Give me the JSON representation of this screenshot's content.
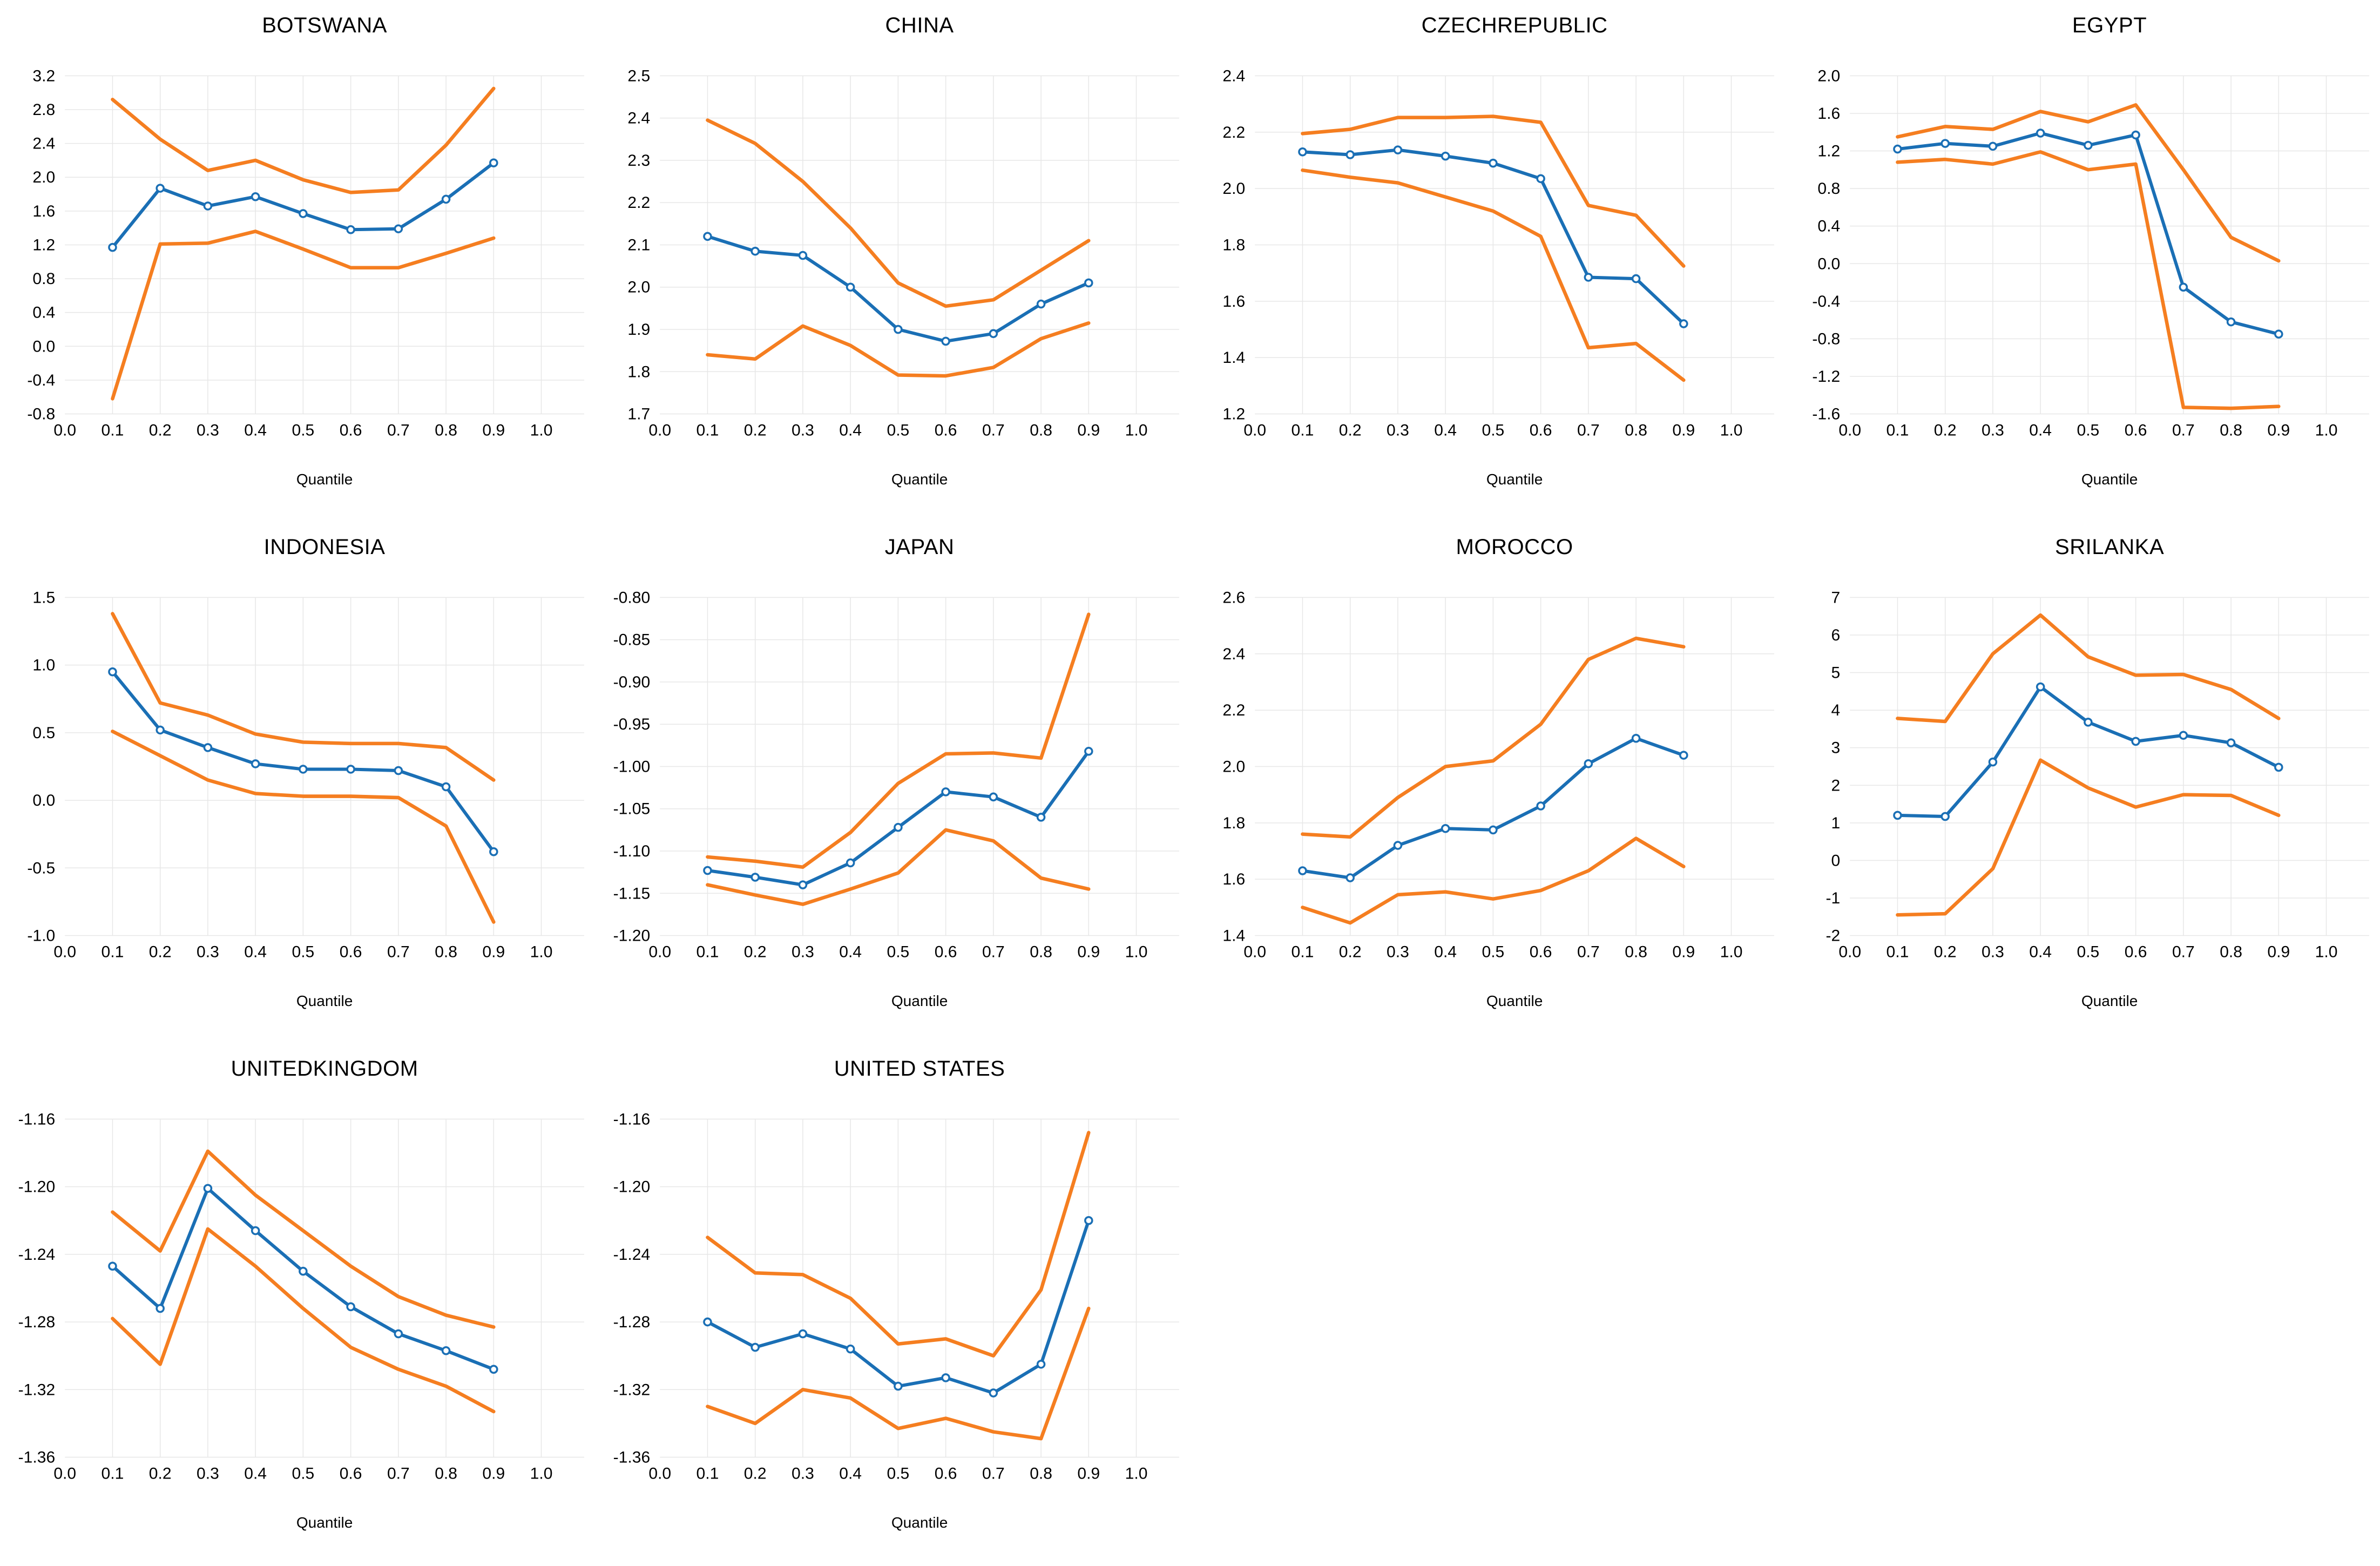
{
  "page": {
    "background": "#ffffff",
    "x_axis_label": "Quantile",
    "x_tick_labels": [
      "0.0",
      "0.1",
      "0.2",
      "0.3",
      "0.4",
      "0.5",
      "0.6",
      "0.7",
      "0.8",
      "0.9",
      "1.0"
    ]
  },
  "colors": {
    "estimate_line": "#1A6FB5",
    "ci_line": "#F57E20",
    "marker_fill": "#FFFFFF",
    "gridline": "#E7E7E7",
    "text": "#000000"
  },
  "chart_data": [
    {
      "type": "line",
      "title": "BOTSWANA",
      "xlabel": "Quantile",
      "x": [
        0.1,
        0.2,
        0.3,
        0.4,
        0.5,
        0.6,
        0.7,
        0.8,
        0.9
      ],
      "xticks": [
        "0.0",
        "0.1",
        "0.2",
        "0.3",
        "0.4",
        "0.5",
        "0.6",
        "0.7",
        "0.8",
        "0.9",
        "1.0"
      ],
      "xlim": [
        0,
        1.09
      ],
      "ylim": [
        -0.8,
        3.2
      ],
      "yticks": [
        "3.2",
        "2.8",
        "2.4",
        "2.0",
        "1.6",
        "1.2",
        "0.8",
        "0.4",
        "0.0",
        "-0.4",
        "-0.8"
      ],
      "grid": true,
      "legend_position": "none",
      "series": [
        {
          "name": "upper-ci",
          "role": "ci",
          "values": [
            2.92,
            2.45,
            2.08,
            2.2,
            1.97,
            1.82,
            1.85,
            2.38,
            3.05
          ]
        },
        {
          "name": "lower-ci",
          "role": "ci",
          "values": [
            -0.62,
            1.21,
            1.22,
            1.36,
            1.15,
            0.93,
            0.93,
            1.1,
            1.28
          ]
        },
        {
          "name": "estimate",
          "role": "estimate",
          "values": [
            1.17,
            1.87,
            1.66,
            1.77,
            1.57,
            1.38,
            1.39,
            1.74,
            2.17
          ]
        }
      ]
    },
    {
      "type": "line",
      "title": "CHINA",
      "xlabel": "Quantile",
      "x": [
        0.1,
        0.2,
        0.3,
        0.4,
        0.5,
        0.6,
        0.7,
        0.8,
        0.9
      ],
      "xticks": [
        "0.0",
        "0.1",
        "0.2",
        "0.3",
        "0.4",
        "0.5",
        "0.6",
        "0.7",
        "0.8",
        "0.9",
        "1.0"
      ],
      "xlim": [
        0,
        1.09
      ],
      "ylim": [
        1.7,
        2.5
      ],
      "yticks": [
        "2.5",
        "2.4",
        "2.3",
        "2.2",
        "2.1",
        "2.0",
        "1.9",
        "1.8",
        "1.7"
      ],
      "grid": true,
      "legend_position": "none",
      "series": [
        {
          "name": "upper-ci",
          "role": "ci",
          "values": [
            2.395,
            2.34,
            2.25,
            2.14,
            2.01,
            1.955,
            1.97,
            2.04,
            2.11
          ]
        },
        {
          "name": "lower-ci",
          "role": "ci",
          "values": [
            1.84,
            1.83,
            1.908,
            1.862,
            1.792,
            1.79,
            1.81,
            1.878,
            1.915
          ]
        },
        {
          "name": "estimate",
          "role": "estimate",
          "values": [
            2.12,
            2.085,
            2.075,
            2.0,
            1.9,
            1.872,
            1.89,
            1.96,
            2.01
          ]
        }
      ]
    },
    {
      "type": "line",
      "title": "CZECHREPUBLIC",
      "xlabel": "Quantile",
      "x": [
        0.1,
        0.2,
        0.3,
        0.4,
        0.5,
        0.6,
        0.7,
        0.8,
        0.9
      ],
      "xticks": [
        "0.0",
        "0.1",
        "0.2",
        "0.3",
        "0.4",
        "0.5",
        "0.6",
        "0.7",
        "0.8",
        "0.9",
        "1.0"
      ],
      "xlim": [
        0,
        1.09
      ],
      "ylim": [
        1.2,
        2.4
      ],
      "yticks": [
        "2.4",
        "2.2",
        "2.0",
        "1.8",
        "1.6",
        "1.4",
        "1.2"
      ],
      "grid": true,
      "legend_position": "none",
      "series": [
        {
          "name": "upper-ci",
          "role": "ci",
          "values": [
            2.195,
            2.21,
            2.252,
            2.252,
            2.256,
            2.235,
            1.94,
            1.905,
            1.725
          ]
        },
        {
          "name": "lower-ci",
          "role": "ci",
          "values": [
            2.065,
            2.04,
            2.02,
            1.97,
            1.92,
            1.83,
            1.435,
            1.45,
            1.32
          ]
        },
        {
          "name": "estimate",
          "role": "estimate",
          "values": [
            2.13,
            2.12,
            2.137,
            2.115,
            2.09,
            2.035,
            1.685,
            1.68,
            1.52
          ]
        }
      ]
    },
    {
      "type": "line",
      "title": "EGYPT",
      "xlabel": "Quantile",
      "x": [
        0.1,
        0.2,
        0.3,
        0.4,
        0.5,
        0.6,
        0.7,
        0.8,
        0.9
      ],
      "xticks": [
        "0.0",
        "0.1",
        "0.2",
        "0.3",
        "0.4",
        "0.5",
        "0.6",
        "0.7",
        "0.8",
        "0.9",
        "1.0"
      ],
      "xlim": [
        0,
        1.09
      ],
      "ylim": [
        -1.6,
        2.0
      ],
      "yticks": [
        "2.0",
        "1.6",
        "1.2",
        "0.8",
        "0.4",
        "0.0",
        "-0.4",
        "-0.8",
        "-1.2",
        "-1.6"
      ],
      "grid": true,
      "legend_position": "none",
      "series": [
        {
          "name": "upper-ci",
          "role": "ci",
          "values": [
            1.35,
            1.46,
            1.43,
            1.62,
            1.51,
            1.69,
            1.0,
            0.28,
            0.03
          ]
        },
        {
          "name": "lower-ci",
          "role": "ci",
          "values": [
            1.08,
            1.11,
            1.06,
            1.19,
            1.0,
            1.06,
            -1.53,
            -1.54,
            -1.52
          ]
        },
        {
          "name": "estimate",
          "role": "estimate",
          "values": [
            1.22,
            1.28,
            1.25,
            1.39,
            1.26,
            1.37,
            -0.25,
            -0.62,
            -0.75
          ]
        }
      ]
    },
    {
      "type": "line",
      "title": "INDONESIA",
      "xlabel": "Quantile",
      "x": [
        0.1,
        0.2,
        0.3,
        0.4,
        0.5,
        0.6,
        0.7,
        0.8,
        0.9
      ],
      "xticks": [
        "0.0",
        "0.1",
        "0.2",
        "0.3",
        "0.4",
        "0.5",
        "0.6",
        "0.7",
        "0.8",
        "0.9",
        "1.0"
      ],
      "xlim": [
        0,
        1.09
      ],
      "ylim": [
        -1.0,
        1.5
      ],
      "yticks": [
        "1.5",
        "1.0",
        "0.5",
        "0.0",
        "-0.5",
        "-1.0"
      ],
      "grid": true,
      "legend_position": "none",
      "series": [
        {
          "name": "upper-ci",
          "role": "ci",
          "values": [
            1.38,
            0.72,
            0.63,
            0.49,
            0.43,
            0.42,
            0.42,
            0.39,
            0.15
          ]
        },
        {
          "name": "lower-ci",
          "role": "ci",
          "values": [
            0.51,
            0.33,
            0.15,
            0.05,
            0.03,
            0.03,
            0.02,
            -0.19,
            -0.9
          ]
        },
        {
          "name": "estimate",
          "role": "estimate",
          "values": [
            0.95,
            0.52,
            0.39,
            0.27,
            0.23,
            0.23,
            0.22,
            0.1,
            -0.38
          ]
        }
      ]
    },
    {
      "type": "line",
      "title": "JAPAN",
      "xlabel": "Quantile",
      "x": [
        0.1,
        0.2,
        0.3,
        0.4,
        0.5,
        0.6,
        0.7,
        0.8,
        0.9
      ],
      "xticks": [
        "0.0",
        "0.1",
        "0.2",
        "0.3",
        "0.4",
        "0.5",
        "0.6",
        "0.7",
        "0.8",
        "0.9",
        "1.0"
      ],
      "xlim": [
        0,
        1.09
      ],
      "ylim": [
        -1.2,
        -0.8
      ],
      "yticks": [
        "-0.80",
        "-0.85",
        "-0.90",
        "-0.95",
        "-1.00",
        "-1.05",
        "-1.10",
        "-1.15",
        "-1.20"
      ],
      "grid": true,
      "legend_position": "none",
      "series": [
        {
          "name": "upper-ci",
          "role": "ci",
          "values": [
            -1.107,
            -1.112,
            -1.119,
            -1.078,
            -1.02,
            -0.985,
            -0.984,
            -0.99,
            -0.82
          ]
        },
        {
          "name": "lower-ci",
          "role": "ci",
          "values": [
            -1.14,
            -1.152,
            -1.163,
            -1.145,
            -1.126,
            -1.075,
            -1.088,
            -1.132,
            -1.145
          ]
        },
        {
          "name": "estimate",
          "role": "estimate",
          "values": [
            -1.123,
            -1.131,
            -1.14,
            -1.114,
            -1.072,
            -1.03,
            -1.036,
            -1.06,
            -0.982
          ]
        }
      ]
    },
    {
      "type": "line",
      "title": "MOROCCO",
      "xlabel": "Quantile",
      "x": [
        0.1,
        0.2,
        0.3,
        0.4,
        0.5,
        0.6,
        0.7,
        0.8,
        0.9
      ],
      "xticks": [
        "0.0",
        "0.1",
        "0.2",
        "0.3",
        "0.4",
        "0.5",
        "0.6",
        "0.7",
        "0.8",
        "0.9",
        "1.0"
      ],
      "xlim": [
        0,
        1.09
      ],
      "ylim": [
        1.4,
        2.6
      ],
      "yticks": [
        "2.6",
        "2.4",
        "2.2",
        "2.0",
        "1.8",
        "1.6",
        "1.4"
      ],
      "grid": true,
      "legend_position": "none",
      "series": [
        {
          "name": "upper-ci",
          "role": "ci",
          "values": [
            1.76,
            1.75,
            1.89,
            2.0,
            2.02,
            2.15,
            2.38,
            2.455,
            2.425
          ]
        },
        {
          "name": "lower-ci",
          "role": "ci",
          "values": [
            1.5,
            1.445,
            1.545,
            1.555,
            1.53,
            1.56,
            1.63,
            1.745,
            1.645
          ]
        },
        {
          "name": "estimate",
          "role": "estimate",
          "values": [
            1.63,
            1.605,
            1.72,
            1.78,
            1.775,
            1.86,
            2.01,
            2.1,
            2.04
          ]
        }
      ]
    },
    {
      "type": "line",
      "title": "SRILANKA",
      "xlabel": "Quantile",
      "x": [
        0.1,
        0.2,
        0.3,
        0.4,
        0.5,
        0.6,
        0.7,
        0.8,
        0.9
      ],
      "xticks": [
        "0.0",
        "0.1",
        "0.2",
        "0.3",
        "0.4",
        "0.5",
        "0.6",
        "0.7",
        "0.8",
        "0.9",
        "1.0"
      ],
      "xlim": [
        0,
        1.09
      ],
      "ylim": [
        -2,
        7
      ],
      "yticks": [
        "7",
        "6",
        "5",
        "4",
        "3",
        "2",
        "1",
        "0",
        "-1",
        "-2"
      ],
      "grid": true,
      "legend_position": "none",
      "series": [
        {
          "name": "upper-ci",
          "role": "ci",
          "values": [
            3.78,
            3.7,
            5.5,
            6.53,
            5.42,
            4.93,
            4.95,
            4.55,
            3.78
          ]
        },
        {
          "name": "lower-ci",
          "role": "ci",
          "values": [
            -1.45,
            -1.42,
            -0.22,
            2.67,
            1.93,
            1.42,
            1.75,
            1.73,
            1.2
          ]
        },
        {
          "name": "estimate",
          "role": "estimate",
          "values": [
            1.2,
            1.17,
            2.62,
            4.62,
            3.68,
            3.17,
            3.33,
            3.13,
            2.48
          ]
        }
      ]
    },
    {
      "type": "line",
      "title": "UNITEDKINGDOM",
      "xlabel": "Quantile",
      "x": [
        0.1,
        0.2,
        0.3,
        0.4,
        0.5,
        0.6,
        0.7,
        0.8,
        0.9
      ],
      "xticks": [
        "0.0",
        "0.1",
        "0.2",
        "0.3",
        "0.4",
        "0.5",
        "0.6",
        "0.7",
        "0.8",
        "0.9",
        "1.0"
      ],
      "xlim": [
        0,
        1.09
      ],
      "ylim": [
        -1.36,
        -1.16
      ],
      "yticks": [
        "-1.16",
        "-1.20",
        "-1.24",
        "-1.28",
        "-1.32",
        "-1.36"
      ],
      "grid": true,
      "legend_position": "none",
      "series": [
        {
          "name": "upper-ci",
          "role": "ci",
          "values": [
            -1.215,
            -1.238,
            -1.179,
            -1.205,
            -1.226,
            -1.247,
            -1.265,
            -1.276,
            -1.283
          ]
        },
        {
          "name": "lower-ci",
          "role": "ci",
          "values": [
            -1.278,
            -1.305,
            -1.225,
            -1.247,
            -1.272,
            -1.295,
            -1.308,
            -1.318,
            -1.333
          ]
        },
        {
          "name": "estimate",
          "role": "estimate",
          "values": [
            -1.247,
            -1.272,
            -1.201,
            -1.226,
            -1.25,
            -1.271,
            -1.287,
            -1.297,
            -1.308
          ]
        }
      ]
    },
    {
      "type": "line",
      "title": "UNITED STATES",
      "xlabel": "Quantile",
      "x": [
        0.1,
        0.2,
        0.3,
        0.4,
        0.5,
        0.6,
        0.7,
        0.8,
        0.9
      ],
      "xticks": [
        "0.0",
        "0.1",
        "0.2",
        "0.3",
        "0.4",
        "0.5",
        "0.6",
        "0.7",
        "0.8",
        "0.9",
        "1.0"
      ],
      "xlim": [
        0,
        1.09
      ],
      "ylim": [
        -1.36,
        -1.16
      ],
      "yticks": [
        "-1.16",
        "-1.20",
        "-1.24",
        "-1.28",
        "-1.32",
        "-1.36"
      ],
      "grid": true,
      "legend_position": "none",
      "series": [
        {
          "name": "upper-ci",
          "role": "ci",
          "values": [
            -1.23,
            -1.251,
            -1.252,
            -1.266,
            -1.293,
            -1.29,
            -1.3,
            -1.261,
            -1.168
          ]
        },
        {
          "name": "lower-ci",
          "role": "ci",
          "values": [
            -1.33,
            -1.34,
            -1.32,
            -1.325,
            -1.343,
            -1.337,
            -1.345,
            -1.349,
            -1.272
          ]
        },
        {
          "name": "estimate",
          "role": "estimate",
          "values": [
            -1.28,
            -1.295,
            -1.287,
            -1.296,
            -1.318,
            -1.313,
            -1.322,
            -1.305,
            -1.22
          ]
        }
      ]
    }
  ]
}
